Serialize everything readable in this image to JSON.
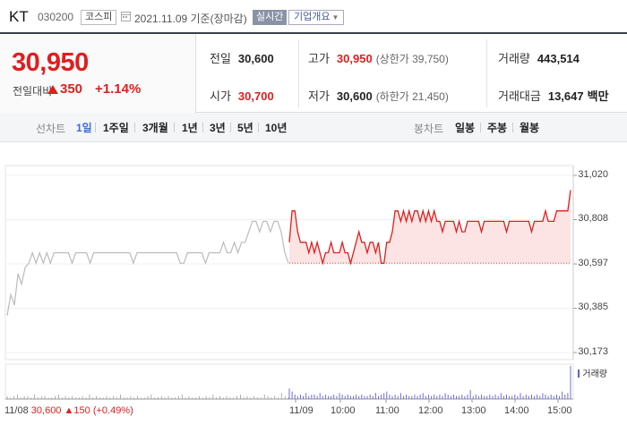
{
  "header": {
    "name": "KT",
    "code": "030200",
    "market": "코스피",
    "date_text": "2021.11.09  기준(장마감)",
    "realtime_label": "실시간",
    "company_info_label": "기업개요"
  },
  "price": {
    "current": "30,950",
    "diff_label": "전일대비",
    "diff_value": "350",
    "diff_pct": "+1.14%",
    "direction": "up"
  },
  "stats": {
    "prev_close": {
      "label": "전일",
      "value": "30,600"
    },
    "high": {
      "label": "고가",
      "value": "30,950",
      "sub": "(상한가 39,750)"
    },
    "volume": {
      "label": "거래량",
      "value": "443,514"
    },
    "open": {
      "label": "시가",
      "value": "30,700"
    },
    "low": {
      "label": "저가",
      "value": "30,600",
      "sub": "(하한가 21,450)"
    },
    "amount": {
      "label": "거래대금",
      "value": "13,647",
      "unit": "백만"
    }
  },
  "period_tabs": {
    "title": "선차트",
    "items": [
      "1일",
      "1주일",
      "3개월",
      "1년",
      "3년",
      "5년",
      "10년"
    ],
    "active": "1일"
  },
  "candle_tabs": {
    "title": "봉차트",
    "items": [
      "일봉",
      "주봉",
      "월봉"
    ]
  },
  "colors": {
    "up": "#e01e1e",
    "prev_day_line": "#bbbbbb",
    "area_fill": "#fde4e4",
    "volume": "#5b5fd8",
    "header_border": "#3a3f4a"
  },
  "chart_data": {
    "type": "line",
    "y_ticks": [
      "31,020",
      "30,808",
      "30,597",
      "30,385",
      "30,173"
    ],
    "ylim": [
      30173,
      31020
    ],
    "reference_line": 30600,
    "x_ticks": [
      "11/09",
      "10:00",
      "11:00",
      "12:00",
      "13:00",
      "14:00",
      "15:00"
    ],
    "prev_day_label": "11/08",
    "prev_day_summary": {
      "close": "30,600",
      "change": "150",
      "pct": "(+0.49%)"
    },
    "volume_legend": "거래량",
    "series": [
      {
        "day": "11/08",
        "values": [
          30350,
          30450,
          30400,
          30550,
          30500,
          30580,
          30600,
          30650,
          30600,
          30650,
          30600,
          30650,
          30600,
          30650,
          30650,
          30650,
          30650,
          30650,
          30600,
          30650,
          30650,
          30650,
          30650,
          30600,
          30650,
          30650,
          30650,
          30650,
          30650,
          30650,
          30650,
          30650,
          30650,
          30650,
          30650,
          30600,
          30650,
          30650,
          30650,
          30650,
          30650,
          30650,
          30650,
          30650,
          30650,
          30650,
          30650,
          30650,
          30600,
          30600,
          30650,
          30650,
          30650,
          30650,
          30650,
          30600,
          30650,
          30650,
          30650,
          30650,
          30700,
          30650,
          30650,
          30700,
          30650,
          30700,
          30700,
          30750,
          30800,
          30800,
          30750,
          30800,
          30800,
          30750,
          30800,
          30800,
          30750,
          30650,
          30600
        ]
      },
      {
        "day": "11/09",
        "values": [
          30700,
          30850,
          30850,
          30750,
          30700,
          30700,
          30700,
          30650,
          30700,
          30650,
          30700,
          30650,
          30600,
          30650,
          30650,
          30700,
          30650,
          30650,
          30650,
          30700,
          30650,
          30650,
          30600,
          30650,
          30700,
          30750,
          30700,
          30700,
          30650,
          30700,
          30700,
          30650,
          30700,
          30600,
          30600,
          30700,
          30700,
          30750,
          30850,
          30850,
          30800,
          30850,
          30800,
          30850,
          30800,
          30850,
          30850,
          30800,
          30850,
          30800,
          30850,
          30800,
          30850,
          30800,
          30800,
          30750,
          30800,
          30800,
          30800,
          30800,
          30750,
          30800,
          30750,
          30750,
          30800,
          30800,
          30800,
          30800,
          30800,
          30750,
          30800,
          30800,
          30800,
          30800,
          30800,
          30800,
          30800,
          30800,
          30750,
          30800,
          30800,
          30800,
          30800,
          30800,
          30800,
          30800,
          30800,
          30750,
          30800,
          30800,
          30800,
          30800,
          30850,
          30800,
          30800,
          30800,
          30850,
          30850,
          30850,
          30850,
          30850,
          30950
        ]
      }
    ],
    "volume": {
      "day1": [
        2,
        1,
        2,
        3,
        1,
        2,
        2,
        1,
        3,
        1,
        2,
        2,
        1,
        1,
        2,
        3,
        1,
        2,
        1,
        2,
        1,
        1,
        2,
        1,
        3,
        1,
        2,
        1,
        1,
        2,
        1,
        2,
        1,
        3,
        1,
        1,
        2,
        1,
        2,
        1,
        1,
        2,
        3,
        1,
        1,
        2,
        1,
        2,
        1,
        1,
        2,
        3,
        1,
        2,
        1,
        1,
        2,
        1,
        2,
        1,
        3,
        1,
        2,
        1,
        2,
        1,
        1,
        2,
        3,
        1,
        2,
        1,
        2,
        1,
        1,
        3,
        2,
        1,
        2,
        1,
        4,
        2,
        1
      ],
      "day2": [
        7,
        5,
        3,
        2,
        3,
        2,
        4,
        2,
        3,
        3,
        2,
        4,
        2,
        3,
        2,
        2,
        3,
        2,
        4,
        3,
        2,
        3,
        2,
        2,
        3,
        2,
        3,
        2,
        2,
        3,
        2,
        4,
        2,
        3,
        4,
        5,
        3,
        2,
        3,
        2,
        4,
        2,
        3,
        2,
        2,
        3,
        2,
        3,
        4,
        2,
        3,
        2,
        3,
        2,
        3,
        2,
        4,
        3,
        2,
        3,
        2,
        2,
        3,
        2,
        3,
        6,
        2,
        3,
        2,
        3,
        2,
        2,
        3,
        2,
        3,
        2,
        4,
        2,
        3,
        2,
        2,
        3,
        2,
        4,
        2,
        3,
        2,
        3,
        2,
        3,
        2,
        4,
        3,
        2,
        3,
        2,
        3,
        2,
        5,
        3,
        4,
        22
      ]
    }
  }
}
